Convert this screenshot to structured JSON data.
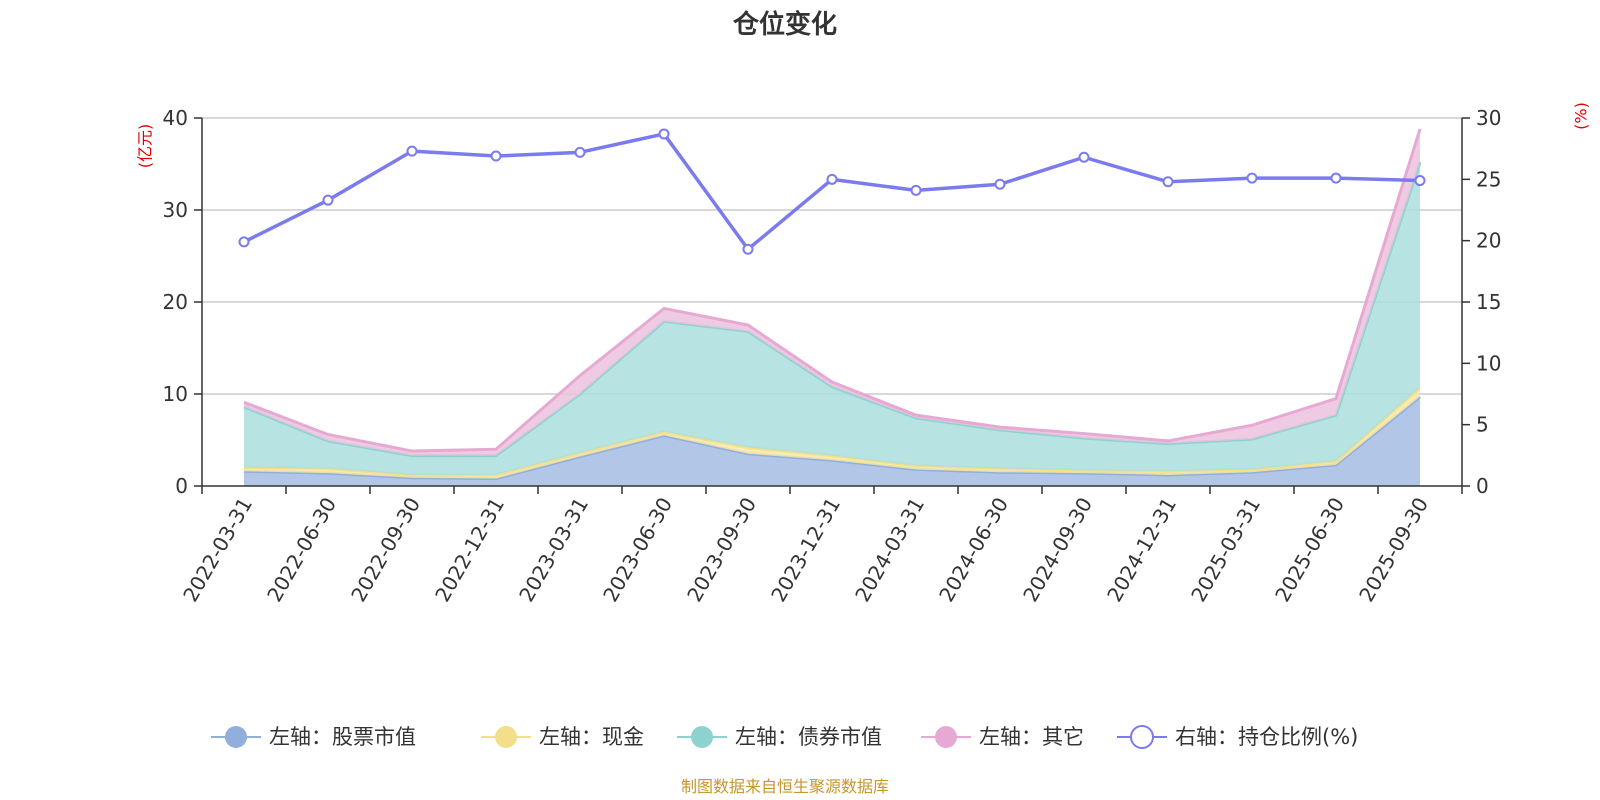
{
  "colors": {
    "stock": "#a4bde4",
    "stock_line": "#92aedb",
    "cash": "#f7e7a6",
    "cash_line": "#f3df8a",
    "bond": "#aadfde",
    "bond_line": "#8ed2d0",
    "other": "#ecc2de",
    "other_line": "#e6a9d3",
    "ratio": "#7b7bef",
    "grid": "#cccccc",
    "axis": "#333333"
  },
  "chart_data": {
    "type": "area",
    "title": "仓位变化",
    "left_axis_unit": "(亿元)",
    "right_axis_unit": "(%)",
    "left_ylim": [
      0,
      40
    ],
    "left_ticks": [
      0,
      10,
      20,
      30,
      40
    ],
    "right_ylim": [
      0,
      30
    ],
    "right_ticks": [
      0,
      5,
      10,
      15,
      20,
      25,
      30
    ],
    "categories": [
      "2022-03-31",
      "2022-06-30",
      "2022-09-30",
      "2022-12-31",
      "2023-03-31",
      "2023-06-30",
      "2023-09-30",
      "2023-12-31",
      "2024-03-31",
      "2024-06-30",
      "2024-09-30",
      "2024-12-31",
      "2025-03-31",
      "2025-06-30",
      "2025-09-30"
    ],
    "series": [
      {
        "key": "stock",
        "name": "左轴：股票市值",
        "axis": "left",
        "stack": true,
        "values": [
          1.6,
          1.4,
          0.9,
          0.8,
          3.2,
          5.5,
          3.5,
          2.8,
          1.8,
          1.5,
          1.4,
          1.2,
          1.5,
          2.3,
          9.7
        ]
      },
      {
        "key": "cash",
        "name": "左轴：现金",
        "axis": "left",
        "stack": true,
        "values": [
          0.4,
          0.5,
          0.3,
          0.4,
          0.4,
          0.4,
          0.7,
          0.5,
          0.4,
          0.4,
          0.3,
          0.4,
          0.3,
          0.4,
          1.0
        ]
      },
      {
        "key": "bond",
        "name": "左轴：债券市值",
        "axis": "left",
        "stack": true,
        "values": [
          6.6,
          3.0,
          2.1,
          2.1,
          6.4,
          12.0,
          12.6,
          7.5,
          5.2,
          4.2,
          3.5,
          3.0,
          3.3,
          5.0,
          24.5
        ]
      },
      {
        "key": "other",
        "name": "左轴：其它",
        "axis": "left",
        "stack": true,
        "values": [
          0.5,
          0.7,
          0.5,
          0.7,
          2.0,
          1.4,
          0.7,
          0.5,
          0.3,
          0.3,
          0.5,
          0.3,
          1.5,
          1.8,
          3.6
        ]
      },
      {
        "key": "ratio",
        "name": "右轴：持仓比例(%)",
        "axis": "right",
        "stack": false,
        "values": [
          19.9,
          23.3,
          27.3,
          26.9,
          27.2,
          28.7,
          19.3,
          25.0,
          24.1,
          24.6,
          26.8,
          24.8,
          25.1,
          25.1,
          24.9
        ]
      }
    ]
  },
  "source": "制图数据来自恒生聚源数据库"
}
